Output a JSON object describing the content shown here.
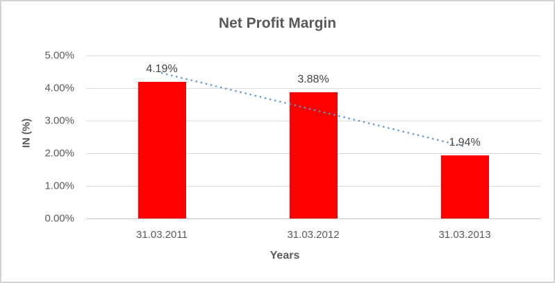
{
  "chart_data": {
    "type": "bar",
    "title": "Net Profit Margin",
    "xlabel": "Years",
    "ylabel": "IN (%)",
    "categories": [
      "31.03.2011",
      "31.03.2012",
      "31.03.2013"
    ],
    "values": [
      4.19,
      3.88,
      1.94
    ],
    "data_labels": [
      "4.19%",
      "3.88%",
      "1.94%"
    ],
    "ylim": [
      0,
      5
    ],
    "ytick_step": 1,
    "ytick_labels": [
      "5.00%",
      "4.00%",
      "3.00%",
      "2.00%",
      "1.00%",
      "0.00%"
    ],
    "grid": true,
    "legend": "none",
    "bar_color": "#FF0000",
    "trendline": {
      "style": "dotted",
      "color": "#5B9BD5",
      "start_value_pct": 4.46,
      "end_value_pct": 2.21
    },
    "colors": {
      "title_text": "#595959",
      "axis_text": "#595959",
      "data_label_text": "#444444",
      "gridline": "#D9D9D9",
      "chart_border": "#D2D2D2",
      "background": "#FFFFFF"
    }
  }
}
